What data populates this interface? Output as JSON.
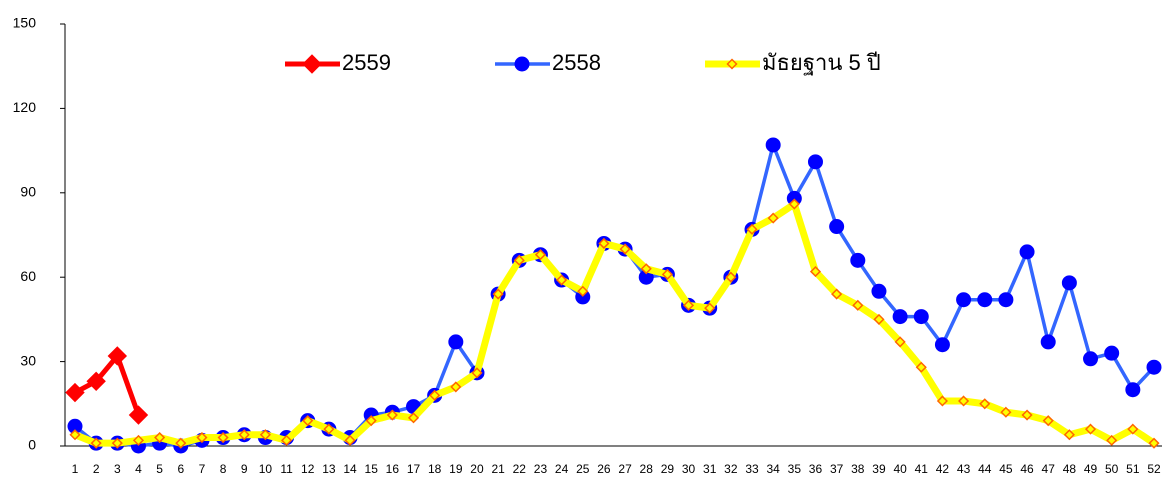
{
  "chart_data": {
    "type": "line",
    "categories": [
      "1",
      "2",
      "3",
      "4",
      "5",
      "6",
      "7",
      "8",
      "9",
      "10",
      "11",
      "12",
      "13",
      "14",
      "15",
      "16",
      "17",
      "18",
      "19",
      "20",
      "21",
      "22",
      "23",
      "24",
      "25",
      "26",
      "27",
      "28",
      "29",
      "30",
      "31",
      "32",
      "33",
      "34",
      "35",
      "36",
      "37",
      "38",
      "39",
      "40",
      "41",
      "42",
      "43",
      "44",
      "45",
      "46",
      "47",
      "48",
      "49",
      "50",
      "51",
      "52"
    ],
    "series": [
      {
        "name": "2559",
        "color": "#ff0000",
        "marker": "diamond",
        "marker_fill": "#ff0000",
        "marker_stroke": "#ff0000",
        "values": [
          19,
          23,
          32,
          11,
          null,
          null,
          null,
          null,
          null,
          null,
          null,
          null,
          null,
          null,
          null,
          null,
          null,
          null,
          null,
          null,
          null,
          null,
          null,
          null,
          null,
          null,
          null,
          null,
          null,
          null,
          null,
          null,
          null,
          null,
          null,
          null,
          null,
          null,
          null,
          null,
          null,
          null,
          null,
          null,
          null,
          null,
          null,
          null,
          null,
          null,
          null,
          null
        ]
      },
      {
        "name": "2558",
        "color": "#3366ff",
        "marker": "circle",
        "marker_fill": "#0000ff",
        "marker_stroke": "#0000ff",
        "values": [
          7,
          1,
          1,
          0,
          1,
          0,
          2,
          3,
          4,
          3,
          3,
          9,
          6,
          3,
          11,
          12,
          14,
          18,
          37,
          26,
          54,
          66,
          68,
          59,
          53,
          72,
          70,
          60,
          61,
          50,
          49,
          60,
          77,
          107,
          88,
          101,
          78,
          66,
          55,
          46,
          46,
          36,
          52,
          52,
          52,
          69,
          37,
          58,
          31,
          33,
          20,
          28
        ]
      },
      {
        "name": "มัธยฐาน 5 ปี",
        "color": "#ffff00",
        "marker": "small-diamond",
        "marker_fill": "#ffff00",
        "marker_stroke": "#ff6600",
        "values": [
          4,
          1,
          1,
          2,
          3,
          1,
          3,
          3,
          4,
          4,
          2,
          9,
          6,
          2,
          9,
          11,
          10,
          18,
          21,
          26,
          54,
          66,
          68,
          59,
          55,
          72,
          70,
          63,
          61,
          50,
          49,
          60,
          77,
          81,
          86,
          62,
          54,
          50,
          45,
          37,
          28,
          16,
          16,
          15,
          12,
          11,
          9,
          4,
          6,
          2,
          6,
          1
        ]
      }
    ],
    "ylim": [
      0,
      150
    ],
    "yticks": [
      0,
      30,
      60,
      90,
      120,
      150
    ],
    "legend": "top"
  }
}
